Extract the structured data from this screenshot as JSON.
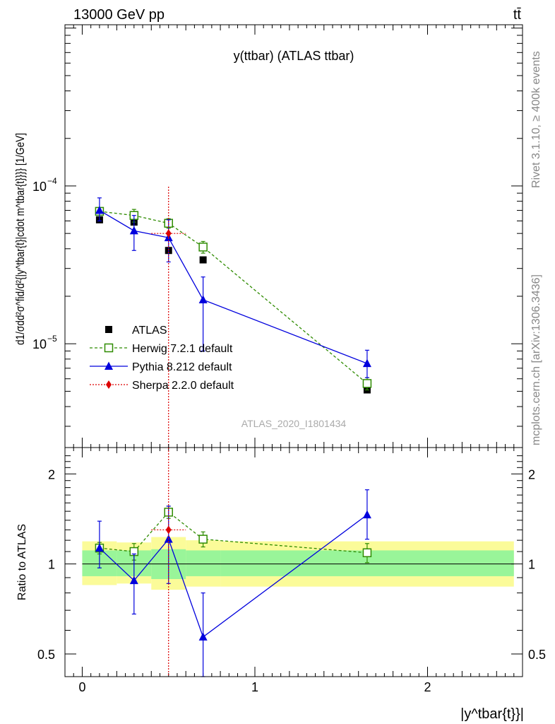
{
  "header": {
    "left": "13000 GeV pp",
    "right": "tt̄",
    "side_top": "Rivet 3.1.10, ≥ 400k events",
    "side_bottom": "mcplots.cern.ch [arXiv:1306.3436]"
  },
  "colors": {
    "data": "#000000",
    "herwig": "#2e8b00",
    "pythia": "#0000dd",
    "sherpa": "#dd0000",
    "band_inner": "#99f599",
    "band_outer": "#fbfb99"
  },
  "chart_data": [
    {
      "type": "scatter",
      "panel": "main",
      "title": "y(ttbar) (ATLAS ttbar)",
      "watermark": "ATLAS_2020_I1801434",
      "ylabel": "d1/σdd²σ^fid/d²{|y^tbar{t}|cdot m^tbar{t}}}} [1/GeV]",
      "yscale": "log",
      "xlim": [
        -0.1,
        2.55
      ],
      "ylim": [
        2.2e-06,
        0.00105
      ],
      "yticks": [
        {
          "v": 1e-05,
          "label": "10",
          "exp": "−5"
        },
        {
          "v": 0.0001,
          "label": "10",
          "exp": "−4"
        }
      ],
      "legend_position": "lower-left",
      "series": [
        {
          "name": "ATLAS",
          "style": "data",
          "x": [
            0.1,
            0.3,
            0.5,
            0.7,
            1.65
          ],
          "y": [
            6.1e-05,
            5.9e-05,
            3.9e-05,
            3.4e-05,
            5.1e-06
          ],
          "yerr": [
            [
              2e-06,
              2e-06,
              1e-06,
              1e-06,
              2e-07
            ],
            [
              2e-06,
              2e-06,
              1e-06,
              1e-06,
              2e-07
            ]
          ]
        },
        {
          "name": "Herwig 7.2.1 default",
          "style": "herwig",
          "x": [
            0.1,
            0.3,
            0.5,
            0.7,
            1.65
          ],
          "y": [
            6.9e-05,
            6.5e-05,
            5.8e-05,
            4.1e-05,
            5.6e-06
          ],
          "yerr": [
            [
              3e-06,
              6e-06,
              4e-06,
              3.5e-06,
              5e-07
            ],
            [
              3e-06,
              6e-06,
              4e-06,
              3.5e-06,
              5e-07
            ]
          ]
        },
        {
          "name": "Pythia 8.212 default",
          "style": "pythia",
          "x": [
            0.1,
            0.3,
            0.5,
            0.7,
            1.65
          ],
          "y": [
            7e-05,
            5.2e-05,
            4.7e-05,
            1.9e-05,
            7.5e-06
          ],
          "yerr": [
            [
              1e-05,
              1.3e-05,
              1.4e-05,
              1e-05,
              1.4e-06
            ],
            [
              1.4e-05,
              1.3e-05,
              1.4e-05,
              7.5e-06,
              1.6e-06
            ]
          ]
        },
        {
          "name": "Sherpa 2.2.0 default",
          "style": "sherpa",
          "x": [
            0.5
          ],
          "y": [
            5e-05
          ],
          "yerr": [
            [
              4.9e-05
            ],
            [
              4.9e-05
            ]
          ],
          "xerr": [
            0.1
          ]
        }
      ]
    },
    {
      "type": "scatter",
      "panel": "ratio",
      "ylabel": "Ratio to ATLAS",
      "xlabel": "|y^tbar{t}}|",
      "yscale": "log",
      "xlim": [
        -0.1,
        2.55
      ],
      "ylim": [
        0.42,
        2.45
      ],
      "yticks": [
        0.5,
        1,
        2
      ],
      "xticks": [
        0,
        1,
        2
      ],
      "bands": {
        "edges": [
          0.0,
          0.2,
          0.4,
          0.6,
          0.8,
          2.5
        ],
        "inner": [
          [
            0.91,
            1.11
          ],
          [
            0.91,
            1.11
          ],
          [
            0.89,
            1.12
          ],
          [
            0.91,
            1.11
          ],
          [
            0.91,
            1.11
          ]
        ],
        "outer": [
          [
            0.85,
            1.19
          ],
          [
            0.86,
            1.18
          ],
          [
            0.82,
            1.23
          ],
          [
            0.84,
            1.2
          ],
          [
            0.84,
            1.19
          ]
        ]
      },
      "series": [
        {
          "name": "Herwig 7.2.1 default",
          "style": "herwig",
          "x": [
            0.1,
            0.3,
            0.5,
            0.7,
            1.65
          ],
          "y": [
            1.13,
            1.1,
            1.49,
            1.21,
            1.09
          ],
          "yerr": [
            [
              0.05,
              0.07,
              0.07,
              0.07,
              0.08
            ],
            [
              0.05,
              0.07,
              0.07,
              0.07,
              0.08
            ]
          ]
        },
        {
          "name": "Pythia 8.212 default",
          "style": "pythia",
          "x": [
            0.1,
            0.3,
            0.5,
            0.7,
            1.65
          ],
          "y": [
            1.13,
            0.88,
            1.21,
            0.57,
            1.46
          ],
          "yerr": [
            [
              0.16,
              0.2,
              0.35,
              0.21,
              0.25
            ],
            [
              0.26,
              0.2,
              0.35,
              0.23,
              0.31
            ]
          ]
        },
        {
          "name": "Sherpa 2.2.0 default",
          "style": "sherpa",
          "x": [
            0.5
          ],
          "y": [
            1.3
          ],
          "yerr": [
            [
              1.0
            ],
            [
              2.0
            ]
          ],
          "xerr": [
            0.1
          ]
        }
      ]
    }
  ]
}
